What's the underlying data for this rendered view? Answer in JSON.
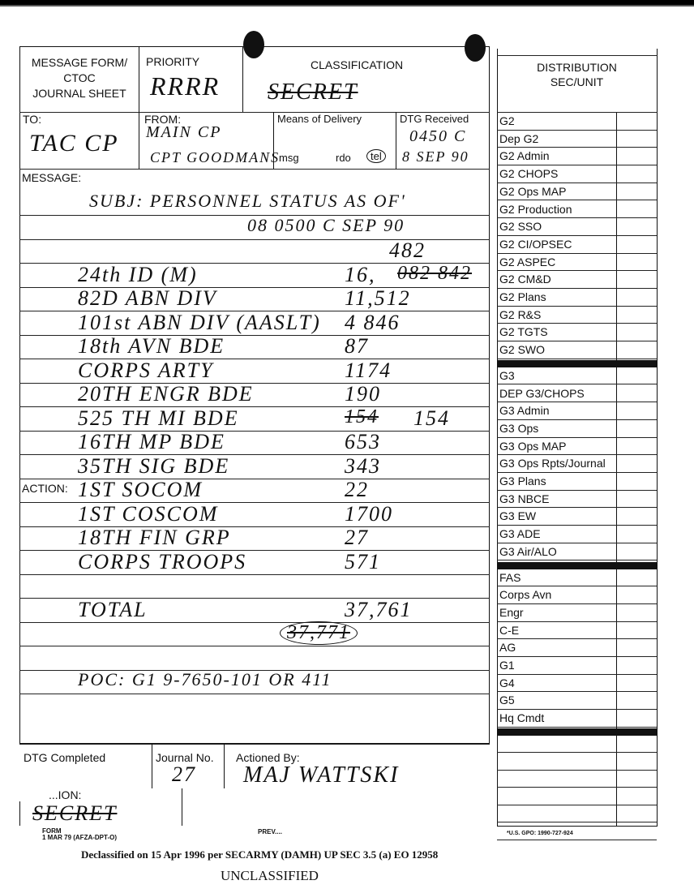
{
  "header": {
    "form_title": "MESSAGE FORM/\nCTOC\nJOURNAL SHEET",
    "priority_label": "PRIORITY",
    "priority_value": "RRRR",
    "classification_label": "CLASSIFICATION",
    "classification_value": "SECRET"
  },
  "routing": {
    "to_label": "TO:",
    "to_value": "TAC CP",
    "from_label": "FROM:",
    "from_line1": "MAIN CP",
    "from_line2": "CPT GOODMANS",
    "means_label": "Means of Delivery",
    "means_options": [
      "msg",
      "rdo",
      "tel"
    ],
    "means_selected": "tel",
    "dtg_label": "DTG Received",
    "dtg_line1": "0450 C",
    "dtg_line2": "8 SEP 90"
  },
  "message": {
    "label": "MESSAGE:",
    "action_label": "ACTION:",
    "lines": [
      {
        "left": "SUBJ: PERSONNEL STATUS AS OF'",
        "right": ""
      },
      {
        "left": "",
        "right": "08 0500 C SEP 90"
      },
      {
        "left": "",
        "right": "482"
      },
      {
        "left": "24th ID (M)",
        "right": "16,",
        "struck": "082 842"
      },
      {
        "left": "82D ABN DIV",
        "right": "11,512"
      },
      {
        "left": "101st ABN DIV (AASLT)",
        "right": "4 846"
      },
      {
        "left": "18th AVN BDE",
        "right": "87"
      },
      {
        "left": "CORPS ARTY",
        "right": "1174"
      },
      {
        "left": "20TH ENGR BDE",
        "right": "190"
      },
      {
        "left": "525 TH MI BDE",
        "right": "154",
        "struck": "154"
      },
      {
        "left": "16TH MP BDE",
        "right": "653"
      },
      {
        "left": "35TH SIG BDE",
        "right": "343"
      },
      {
        "left": "1ST SOCOM",
        "right": "22"
      },
      {
        "left": "1ST COSCOM",
        "right": "1700"
      },
      {
        "left": "18TH FIN GRP",
        "right": "27"
      },
      {
        "left": "CORPS TROOPS",
        "right": "571"
      },
      {
        "left": "",
        "right": ""
      },
      {
        "left": "TOTAL",
        "right": "37,761"
      },
      {
        "left": "",
        "right": "",
        "struck": "37,771"
      },
      {
        "left": "",
        "right": ""
      },
      {
        "left": "POC: G1   9-7650-101   OR   411",
        "right": ""
      }
    ]
  },
  "footer": {
    "dtg_completed_label": "DTG  Completed",
    "journal_label": "Journal  No.",
    "journal_value": "27",
    "actioned_label": "Actioned  By:",
    "actioned_value": "MAJ WATTSKI",
    "classification_label": "...ION:",
    "classification_value": "SECRET",
    "form_line": "FORM\n1 MAR 79 (AFZA-DPT-O)",
    "prev_text": "PREV....",
    "gpo": "*U.S. GPO: 1990-727-924"
  },
  "distribution": {
    "title": "DISTRIBUTION\nSEC/UNIT",
    "group1": [
      "G2",
      "Dep  G2",
      "G2  Admin",
      "G2  CHOPS",
      "G2  Ops  MAP",
      "G2  Production",
      "G2  SSO",
      "G2  CI/OPSEC",
      "G2  ASPEC",
      "G2  CM&D",
      "G2  Plans",
      "G2  R&S",
      "G2  TGTS",
      "G2  SWO"
    ],
    "group2": [
      "G3",
      "DEP  G3/CHOPS",
      "G3  Admin",
      "G3  Ops",
      "G3  Ops  MAP",
      "G3 Ops Rpts/Journal",
      "G3  Plans",
      "G3  NBCE",
      "G3  EW",
      "G3  ADE",
      "G3  Air/ALO"
    ],
    "group3": [
      "FAS",
      "Corps  Avn",
      "Engr",
      "C-E",
      "AG",
      "G1",
      "G4",
      "G5",
      "Hq  Cmdt"
    ],
    "blank_rows": 6
  },
  "stamps": {
    "declassified": "Declassified on 15 Apr 1996 per SECARMY (DAMH) UP SEC 3.5 (a) EO 12958",
    "unclassified": "UNCLASSIFIED"
  }
}
